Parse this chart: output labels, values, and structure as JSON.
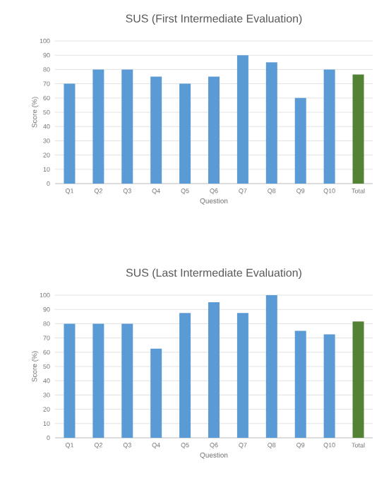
{
  "chart_data": [
    {
      "type": "bar",
      "title": "SUS (First Intermediate Evaluation)",
      "xlabel": "Question",
      "ylabel": "Score (%)",
      "categories": [
        "Q1",
        "Q2",
        "Q3",
        "Q4",
        "Q5",
        "Q6",
        "Q7",
        "Q8",
        "Q9",
        "Q10",
        "Total"
      ],
      "values": [
        70,
        80,
        80,
        75,
        70,
        75,
        90,
        85,
        60,
        80,
        76.5
      ],
      "colors": [
        "#5b9bd5",
        "#5b9bd5",
        "#5b9bd5",
        "#5b9bd5",
        "#5b9bd5",
        "#5b9bd5",
        "#5b9bd5",
        "#5b9bd5",
        "#5b9bd5",
        "#5b9bd5",
        "#548235"
      ],
      "ylim": [
        0,
        100
      ],
      "yticks": [
        0,
        10,
        20,
        30,
        40,
        50,
        60,
        70,
        80,
        90,
        100
      ],
      "grid": "y"
    },
    {
      "type": "bar",
      "title": "SUS (Last Intermediate Evaluation)",
      "xlabel": "Question",
      "ylabel": "Score (%)",
      "categories": [
        "Q1",
        "Q2",
        "Q3",
        "Q4",
        "Q5",
        "Q6",
        "Q7",
        "Q8",
        "Q9",
        "Q10",
        "Total"
      ],
      "values": [
        80,
        80,
        80,
        62.5,
        87.5,
        95,
        87.5,
        100,
        75,
        72.5,
        81.5
      ],
      "colors": [
        "#5b9bd5",
        "#5b9bd5",
        "#5b9bd5",
        "#5b9bd5",
        "#5b9bd5",
        "#5b9bd5",
        "#5b9bd5",
        "#5b9bd5",
        "#5b9bd5",
        "#5b9bd5",
        "#548235"
      ],
      "ylim": [
        0,
        100
      ],
      "yticks": [
        0,
        10,
        20,
        30,
        40,
        50,
        60,
        70,
        80,
        90,
        100
      ],
      "grid": "y"
    }
  ]
}
